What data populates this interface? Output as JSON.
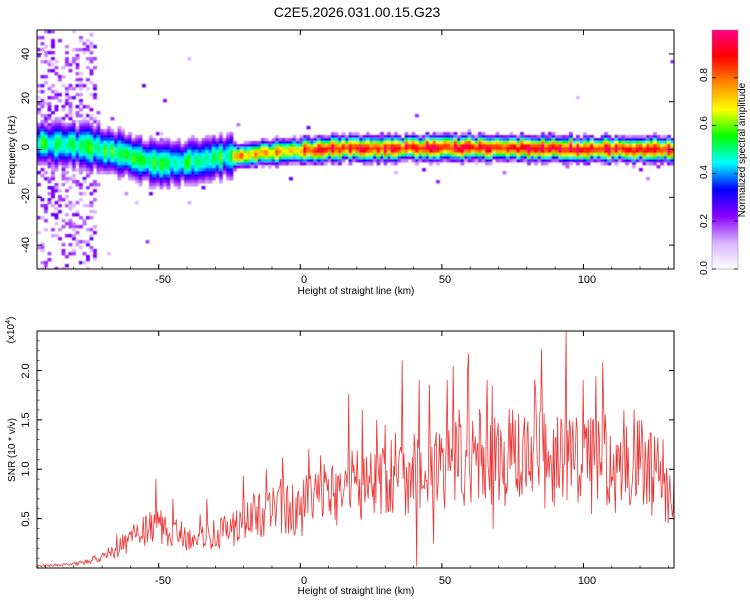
{
  "chart_data": [
    {
      "type": "heatmap",
      "title": "C2E5.2026.031.00.15.G23",
      "xlabel": "Height of straight line (km)",
      "ylabel": "Frequency (Hz)",
      "xlim": [
        -93,
        132
      ],
      "ylim": [
        -50,
        50
      ],
      "x_ticks": [
        -50,
        0,
        50,
        100
      ],
      "x_tick_labels": [
        "-50",
        "0",
        "50",
        "100"
      ],
      "y_ticks": [
        40,
        20,
        0,
        -20,
        -40
      ],
      "y_tick_labels": [
        "40",
        "20",
        "0",
        "-20",
        "-40"
      ],
      "ridge": {
        "x": [
          -93,
          -80,
          -70,
          -60,
          -50,
          -40,
          -30,
          -25,
          -20,
          -10,
          0,
          10,
          20,
          30,
          40,
          50,
          60,
          70,
          80,
          90,
          100,
          110,
          120,
          132
        ],
        "y": [
          3.5,
          2.5,
          0.5,
          -2.5,
          -5.5,
          -4.5,
          -3,
          -2,
          -1.5,
          -0.5,
          0,
          0.8,
          1,
          1.2,
          1.4,
          1.4,
          1.3,
          1.2,
          1.1,
          1.0,
          0.9,
          0.7,
          0.5,
          0.3
        ]
      },
      "colorbar": {
        "label": "Normalized spectral amplitude",
        "range": [
          0,
          1
        ],
        "ticks": [
          0.0,
          0.2,
          0.4,
          0.6,
          0.8
        ],
        "tick_labels": [
          "0.0",
          "0.2",
          "0.4",
          "0.6",
          "0.8"
        ],
        "colors": [
          "#ffffff",
          "#d9b3ff",
          "#8800ff",
          "#0000ff",
          "#00ffff",
          "#00ff00",
          "#ffff00",
          "#ff8800",
          "#ff0000",
          "#ff0088"
        ]
      }
    },
    {
      "type": "line",
      "title": "",
      "xlabel": "Height of straight line (km)",
      "ylabel": "SNR (10 * v/v)",
      "scale_label": "(x10",
      "scale_exponent": "4",
      "scale_suffix": ")",
      "xlim": [
        -93,
        132
      ],
      "ylim": [
        0,
        2.4
      ],
      "x_ticks": [
        -50,
        0,
        50,
        100
      ],
      "x_tick_labels": [
        "-50",
        "0",
        "50",
        "100"
      ],
      "y_ticks": [
        0.5,
        1.0,
        1.5,
        2.0
      ],
      "y_tick_labels": [
        "0.5",
        "1.0",
        "1.5",
        "2.0"
      ],
      "series": [
        {
          "name": "SNR",
          "color": "#ee3333",
          "x": [
            -93,
            -85,
            -80,
            -75,
            -70,
            -65,
            -60,
            -55,
            -50,
            -45,
            -40,
            -35,
            -30,
            -25,
            -20,
            -15,
            -10,
            -5,
            0,
            5,
            10,
            15,
            20,
            25,
            30,
            35,
            40,
            45,
            50,
            55,
            60,
            65,
            70,
            75,
            80,
            85,
            90,
            95,
            100,
            105,
            110,
            115,
            120,
            125,
            130,
            132
          ],
          "values": [
            0.02,
            0.03,
            0.04,
            0.06,
            0.12,
            0.18,
            0.3,
            0.38,
            0.42,
            0.35,
            0.32,
            0.3,
            0.34,
            0.38,
            0.45,
            0.55,
            0.6,
            0.58,
            0.62,
            0.7,
            0.72,
            0.8,
            0.85,
            0.9,
            0.9,
            0.95,
            1.0,
            1.0,
            1.05,
            1.05,
            1.1,
            1.1,
            1.1,
            1.12,
            1.1,
            1.12,
            1.1,
            1.15,
            1.15,
            1.12,
            1.1,
            1.1,
            1.05,
            0.95,
            0.8,
            0.7
          ],
          "spikes": [
            [
              -51,
              0.9
            ],
            [
              -45,
              0.7
            ],
            [
              -33,
              0.7
            ],
            [
              -20,
              0.93
            ],
            [
              -12,
              1.0
            ],
            [
              -7,
              0.9
            ],
            [
              3,
              1.2
            ],
            [
              11,
              1.0
            ],
            [
              17,
              1.76
            ],
            [
              22,
              1.6
            ],
            [
              27,
              1.5
            ],
            [
              36,
              2.1
            ],
            [
              42,
              1.9
            ],
            [
              47,
              1.8
            ],
            [
              52,
              1.9
            ],
            [
              59,
              2.0
            ],
            [
              66,
              1.9
            ],
            [
              75,
              1.6
            ],
            [
              83,
              1.8
            ],
            [
              94,
              2.4
            ],
            [
              100,
              1.9
            ],
            [
              107,
              1.7
            ],
            [
              118,
              1.6
            ],
            [
              128,
              1.3
            ]
          ],
          "dips": [
            [
              41,
              0.02
            ],
            [
              47,
              0.25
            ],
            [
              68,
              0.4
            ],
            [
              103,
              0.55
            ],
            [
              129,
              0.47
            ]
          ]
        }
      ]
    }
  ]
}
